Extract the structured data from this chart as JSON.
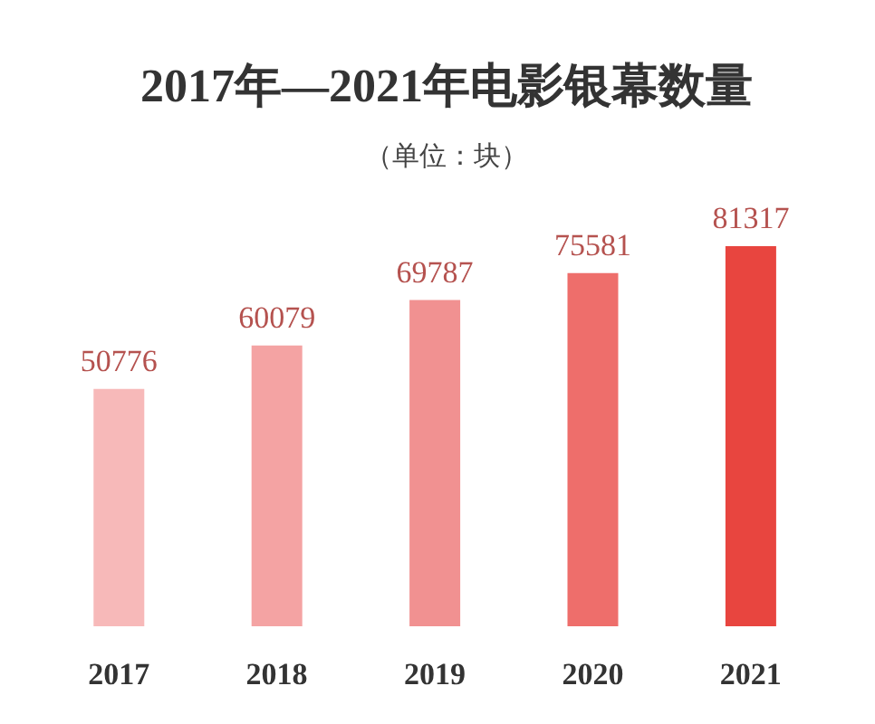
{
  "chart_data": {
    "type": "bar",
    "title": "2017年—2021年电影银幕数量",
    "subtitle": "（单位：块）",
    "categories": [
      "2017",
      "2018",
      "2019",
      "2020",
      "2021"
    ],
    "values": [
      50776,
      60079,
      69787,
      75581,
      81317
    ],
    "colors": [
      "#f7b9b9",
      "#f4a3a3",
      "#f19191",
      "#ee6e6b",
      "#e8453f"
    ],
    "data_labels": true
  }
}
